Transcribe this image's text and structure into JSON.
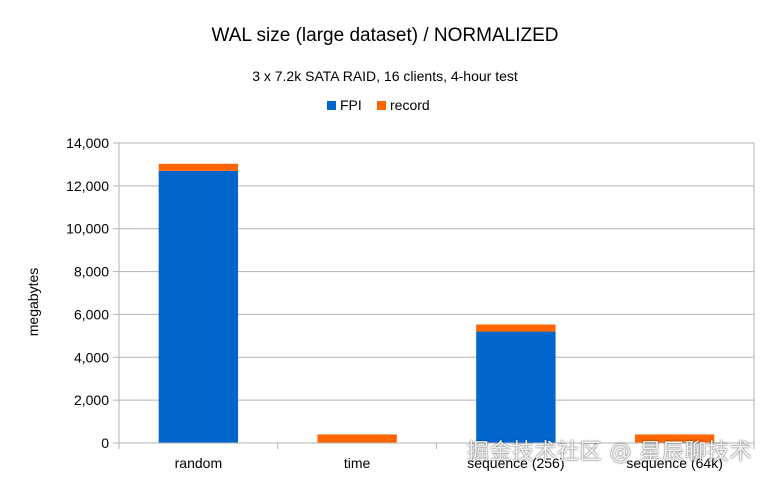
{
  "chart_data": {
    "type": "bar",
    "stacked": true,
    "title": "WAL size (large dataset) / NORMALIZED",
    "subtitle": "3 x 7.2k SATA RAID, 16 clients, 4-hour test",
    "xlabel": "",
    "ylabel": "megabytes",
    "categories": [
      "random",
      "time",
      "sequence (256)",
      "sequence (64k)"
    ],
    "series": [
      {
        "name": "FPI",
        "color": "#0066cc",
        "values": [
          12700,
          20,
          5200,
          20
        ]
      },
      {
        "name": "record",
        "color": "#ff6600",
        "values": [
          330,
          380,
          330,
          380
        ]
      }
    ],
    "ylim": [
      0,
      14000
    ],
    "yticks": [
      0,
      2000,
      4000,
      6000,
      8000,
      10000,
      12000,
      14000
    ],
    "ytick_labels": [
      "0",
      "2,000",
      "4,000",
      "6,000",
      "8,000",
      "10,000",
      "12,000",
      "14,000"
    ],
    "grid": true,
    "legend_position": "top-center"
  },
  "watermark": "掘金技术社区 @ 星辰聊技术"
}
